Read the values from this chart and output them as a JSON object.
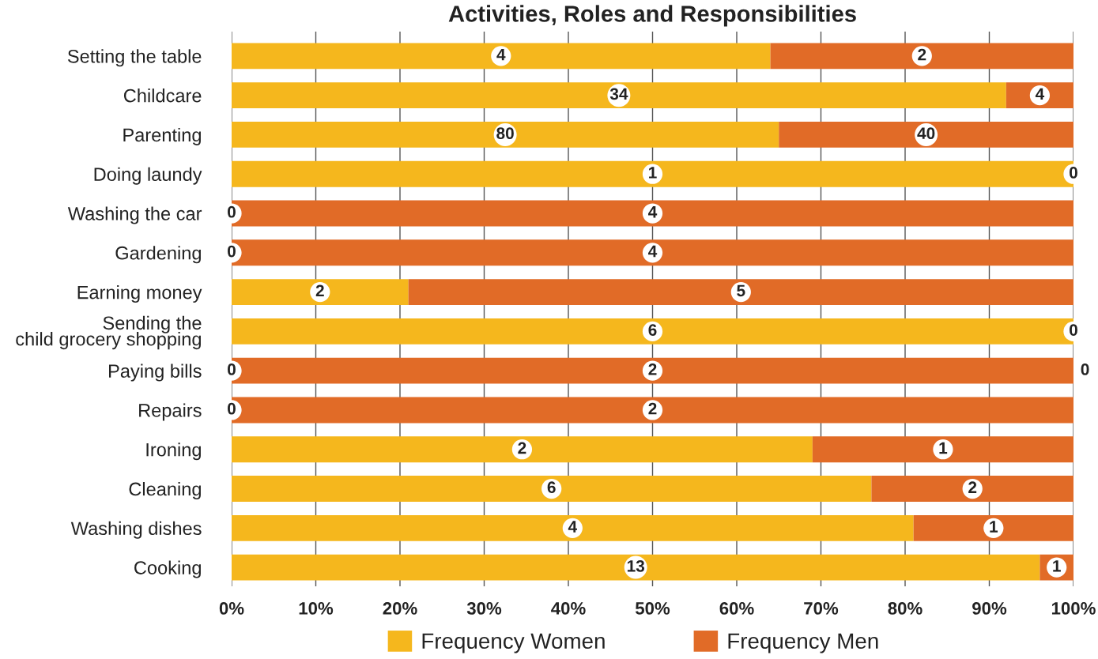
{
  "chart_data": {
    "type": "bar",
    "orientation": "horizontal",
    "stacked": true,
    "title": "Activities, Roles and Responsibilities",
    "categories": [
      "Setting the table",
      "Childcare",
      "Parenting",
      "Doing laundy",
      "Washing the car",
      "Gardening",
      "Earning money",
      "Sending the\nchild grocery shopping",
      "Paying bills",
      "Repairs",
      "Ironing",
      "Cleaning",
      "Washing dishes",
      "Cooking"
    ],
    "series": [
      {
        "name": "Frequency Women",
        "color": "#f5b71d",
        "values": [
          64,
          92,
          65,
          100,
          0,
          0,
          21,
          100,
          0,
          0,
          69,
          76,
          81,
          96
        ]
      },
      {
        "name": "Frequency Men",
        "color": "#e16b27",
        "values": [
          36,
          8,
          35,
          0,
          100,
          100,
          79,
          0,
          100,
          100,
          31,
          24,
          19,
          4
        ]
      }
    ],
    "annotations": [
      "4",
      "2",
      "34",
      "4",
      "80",
      "40",
      "1",
      "0",
      "0",
      "4",
      "0",
      "4",
      "2",
      "5",
      "6",
      "0",
      "0",
      "2",
      "0",
      "2",
      "2",
      "1",
      "6",
      "2",
      "4",
      "1",
      "13",
      "1",
      {
        "text": "0",
        "x": 100,
        "y": "Paying bills"
      }
    ],
    "xlim": [
      0,
      100
    ],
    "xticks": [
      {
        "value": 0,
        "label": "0%"
      },
      {
        "value": 10,
        "label": "10%"
      },
      {
        "value": 20,
        "label": "20%"
      },
      {
        "value": 30,
        "label": "30%"
      },
      {
        "value": 40,
        "label": "40%"
      },
      {
        "value": 50,
        "label": "50%"
      },
      {
        "value": 60,
        "label": "60%"
      },
      {
        "value": 70,
        "label": "70%"
      },
      {
        "value": 80,
        "label": "80%"
      },
      {
        "value": 90,
        "label": "90%"
      },
      {
        "value": 100,
        "label": "100%"
      }
    ],
    "grid": "x",
    "legend": "bottom"
  }
}
